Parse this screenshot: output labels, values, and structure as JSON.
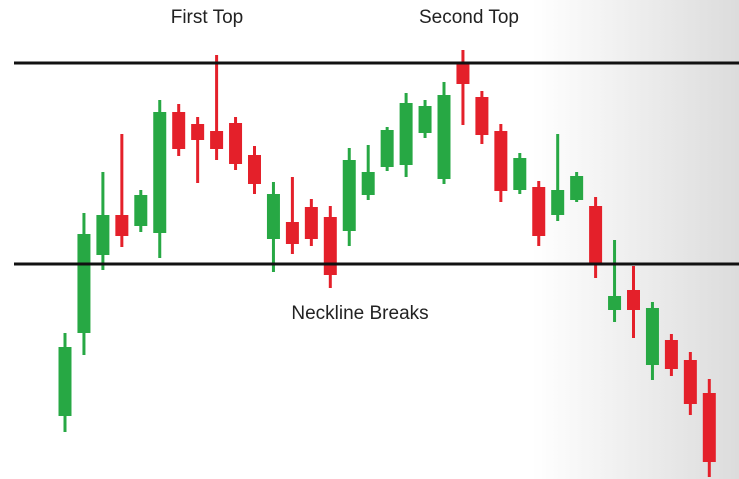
{
  "chart_data": {
    "type": "candlestick",
    "annotations": [
      "First Top",
      "Second Top",
      "Neckline Breaks"
    ],
    "open": [
      63,
      146,
      224,
      264,
      253,
      246,
      367,
      355,
      348,
      356,
      324,
      240,
      257,
      272,
      262,
      248,
      284,
      312,
      314,
      346,
      300,
      417,
      382,
      348,
      289,
      292,
      264,
      279,
      273,
      169,
      189,
      114,
      139,
      119,
      86
    ],
    "high": [
      146,
      266,
      307,
      345,
      289,
      379,
      375,
      362,
      424,
      362,
      333,
      297,
      302,
      280,
      273,
      331,
      334,
      352,
      386,
      379,
      397,
      429,
      388,
      355,
      326,
      298,
      345,
      307,
      282,
      239,
      213,
      177,
      145,
      127,
      100
    ],
    "low": [
      47,
      124,
      209,
      232,
      247,
      221,
      323,
      296,
      319,
      309,
      285,
      207,
      225,
      233,
      191,
      233,
      279,
      308,
      302,
      341,
      295,
      354,
      335,
      277,
      285,
      233,
      258,
      277,
      201,
      157,
      141,
      99,
      103,
      64,
      2
    ],
    "close": [
      132,
      245,
      264,
      243,
      284,
      367,
      330,
      339,
      330,
      315,
      295,
      285,
      235,
      240,
      204,
      319,
      307,
      349,
      376,
      373,
      384,
      395,
      344,
      288,
      321,
      243,
      289,
      303,
      215,
      183,
      169,
      171,
      110,
      75,
      17
    ],
    "up_color": "#27a844",
    "down_color": "#e4202a",
    "hlines": [
      {
        "value": 416,
        "color": "#111111"
      },
      {
        "value": 215,
        "color": "#111111"
      }
    ],
    "ylim": [
      0,
      479
    ]
  }
}
